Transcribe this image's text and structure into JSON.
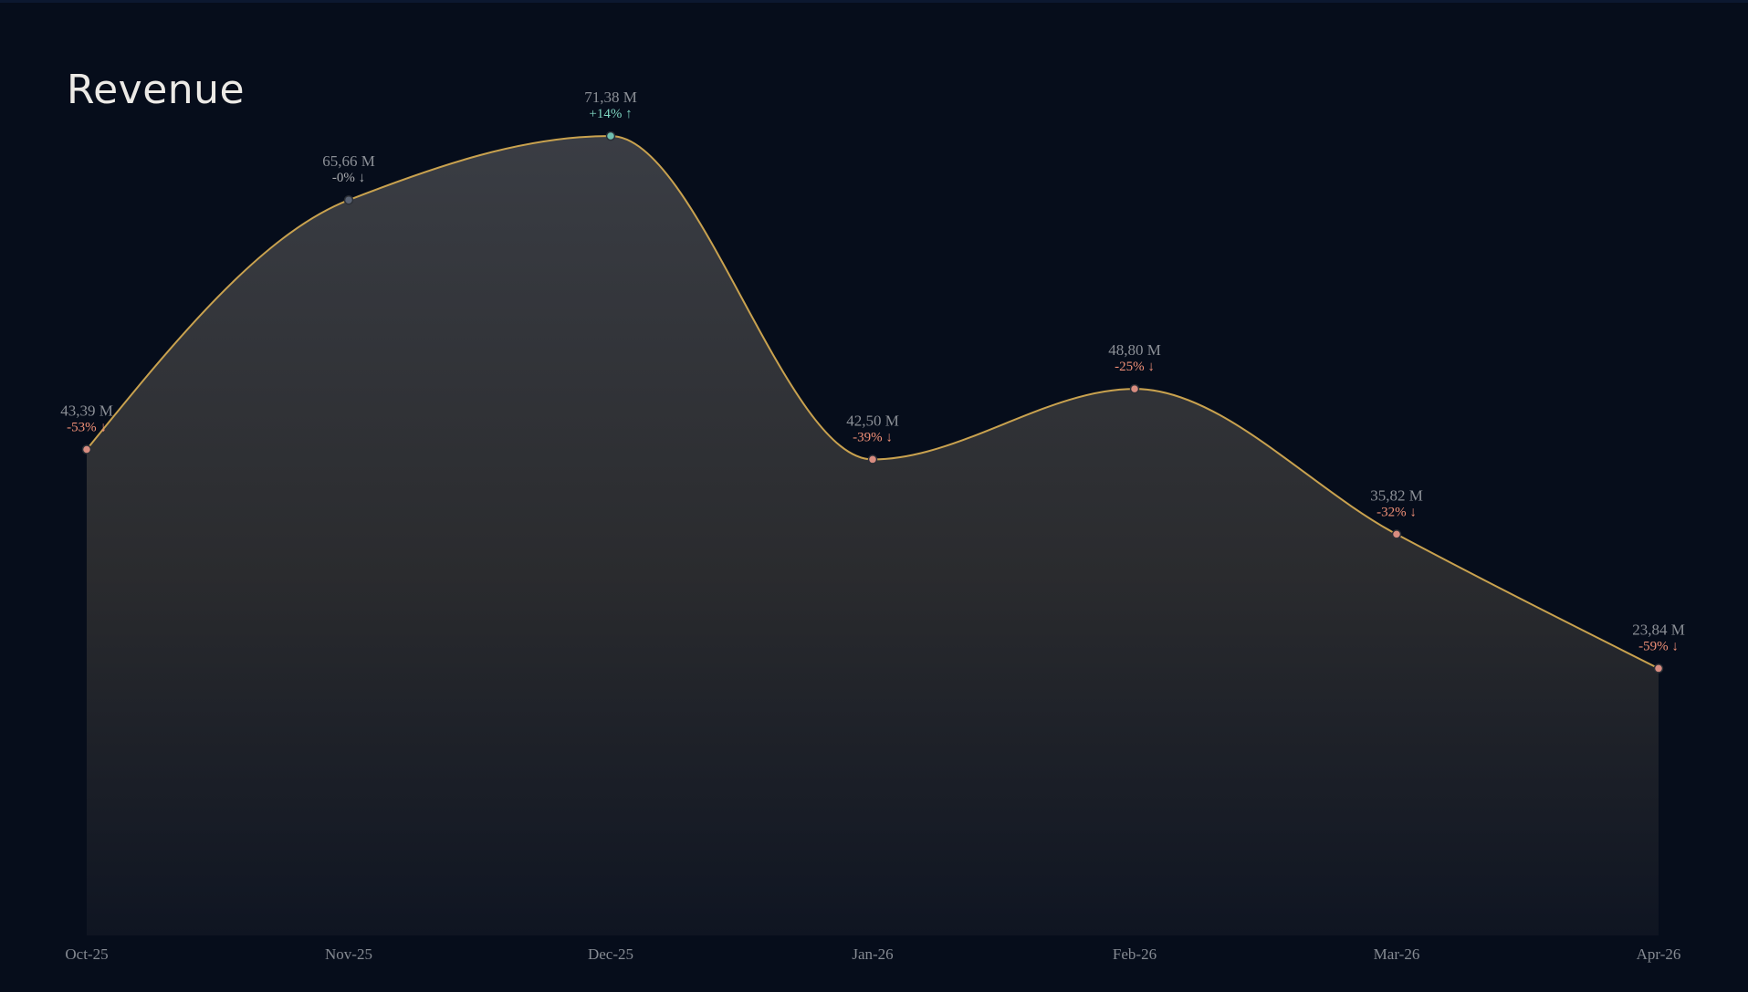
{
  "chart_data": {
    "type": "area",
    "title": "Revenue",
    "xlabel": "",
    "ylabel": "",
    "categories": [
      "Oct-25",
      "Nov-25",
      "Dec-25",
      "Jan-26",
      "Feb-26",
      "Mar-26",
      "Apr-26"
    ],
    "values": [
      43.39,
      65.66,
      71.38,
      42.5,
      48.8,
      35.82,
      23.84
    ],
    "value_labels": [
      "43,39 M",
      "65,66 M",
      "71,38 M",
      "42,50 M",
      "48,80 M",
      "35,82 M",
      "23,84 M"
    ],
    "change_labels": [
      "-53% ↓",
      "-0% ↓",
      "+14% ↑",
      "-39% ↓",
      "-25% ↓",
      "-32% ↓",
      "-59% ↓"
    ],
    "change_direction": [
      "down",
      "flat",
      "up",
      "down",
      "down",
      "down",
      "down"
    ],
    "ylim": [
      0,
      71.38
    ],
    "grid": false,
    "legend": "none",
    "colors": {
      "background": "#060d1b",
      "line": "#c9a24f",
      "area_top": "#3a3d44",
      "area_bottom": "#0f1522",
      "up": "#7fd6c2",
      "down": "#ef8f76",
      "flat": "#a7a9ad",
      "point_up": "#6fbfb0",
      "point_down": "#d88c80",
      "point_flat": "#596273"
    }
  }
}
